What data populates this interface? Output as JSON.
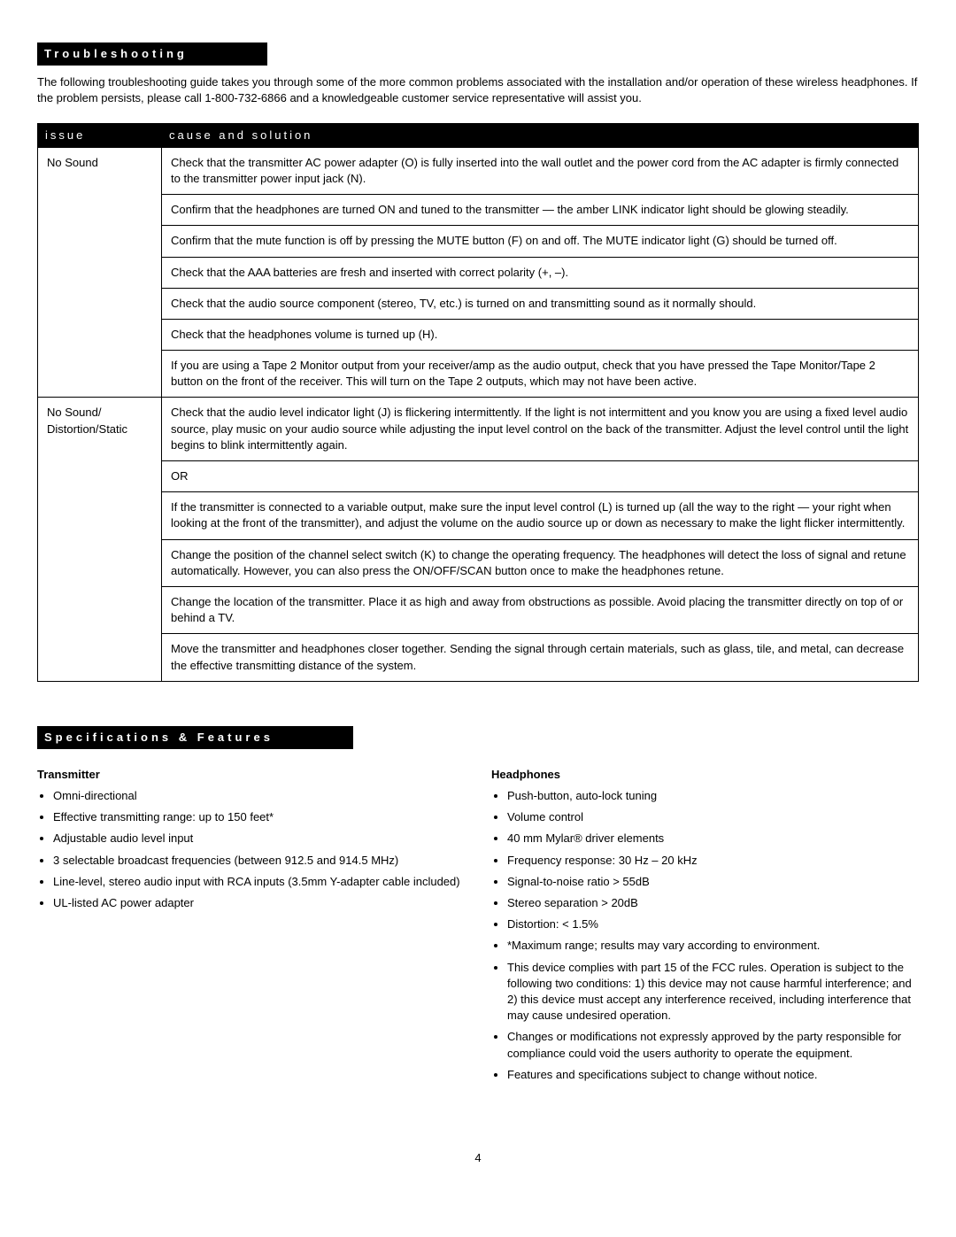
{
  "troubleshooting": {
    "header": "Troubleshooting",
    "intro": "The following troubleshooting guide takes you through some of the more common problems associated with the installation and/or operation of these wireless headphones. If the problem persists, please call 1-800-732-6866 and a knowledgeable customer service representative will assist you.",
    "col_issue": "issue",
    "col_cause": "cause and solution",
    "issue1": "No Sound",
    "issue1_sol1": "Check that the transmitter AC power adapter (O) is fully inserted into the wall outlet and the power cord from the AC adapter is firmly connected to the transmitter power input jack (N).",
    "issue1_sol2": "Confirm that the headphones are turned ON and tuned to the transmitter — the amber LINK indicator light should be glowing steadily.",
    "issue1_sol3": "Confirm that the mute function is off by pressing the MUTE button (F) on and off. The MUTE indicator light (G) should be turned off.",
    "issue1_sol4": "Check that the AAA batteries are fresh and inserted with correct polarity (+, –).",
    "issue1_sol5": "Check that the audio source component (stereo, TV, etc.) is turned on and transmitting sound as it normally should.",
    "issue1_sol6": "Check that the headphones volume is turned up (H).",
    "issue1_sol7": "If you are using a Tape 2 Monitor output from your receiver/amp as the audio output, check that you have pressed the Tape Monitor/Tape 2 button on the front of the receiver. This will turn on the Tape 2 outputs, which may not have been active.",
    "issue2": "No Sound/ Distortion/Static",
    "issue2_sol1": "Check that the audio level indicator light (J) is flickering intermittently. If the light is not intermittent and you know you are using a fixed level audio source, play music on your audio source while adjusting the input level control on the back of the transmitter. Adjust the level control until the light begins to blink intermittently again.",
    "issue2_or": "OR",
    "issue2_sol2": "If the transmitter is connected to a variable output, make sure the input level control (L) is turned up (all the way to the right — your right when looking at the front of the transmitter), and adjust the volume on the audio source up or down as necessary to make the light flicker intermittently.",
    "issue2_sol3": "Change the position of the channel select switch (K) to change the operating frequency. The headphones will detect the loss of signal and retune automatically. However, you can also press the ON/OFF/SCAN button once to make the headphones retune.",
    "issue2_sol4": "Change the location of the transmitter. Place it as high and away from obstructions as possible. Avoid placing the transmitter directly on top of or behind a TV.",
    "issue2_sol5": "Move the transmitter and headphones closer together. Sending the signal through certain materials, such as glass, tile, and metal, can decrease the effective transmitting distance of the system."
  },
  "specs": {
    "header": "Specifications & Features",
    "transmitter_title": "Transmitter",
    "transmitter": [
      "Omni-directional",
      "Effective transmitting range: up to 150 feet*",
      "Adjustable audio level input",
      "3 selectable broadcast frequencies (between 912.5 and 914.5 MHz)",
      "Line-level, stereo audio input with RCA inputs (3.5mm Y-adapter cable included)",
      "UL-listed AC power adapter"
    ],
    "headphones_title": "Headphones",
    "headphones": [
      "Push-button, auto-lock tuning",
      "Volume control",
      "40 mm Mylar® driver elements",
      "Frequency response: 30 Hz – 20 kHz",
      "Signal-to-noise ratio > 55dB",
      "Stereo separation > 20dB",
      "Distortion: < 1.5%",
      "*Maximum range; results may vary according to environment.",
      "This device complies with part 15 of the FCC rules. Operation is subject to the following two conditions: 1) this device may not cause harmful interference; and 2) this device must accept any interference received, including interference that may cause undesired operation.",
      "Changes or modifications not expressly approved by the party responsible for compliance could void the users authority to operate the equipment.",
      "Features and specifications subject to change without notice."
    ]
  },
  "page_number": "4"
}
